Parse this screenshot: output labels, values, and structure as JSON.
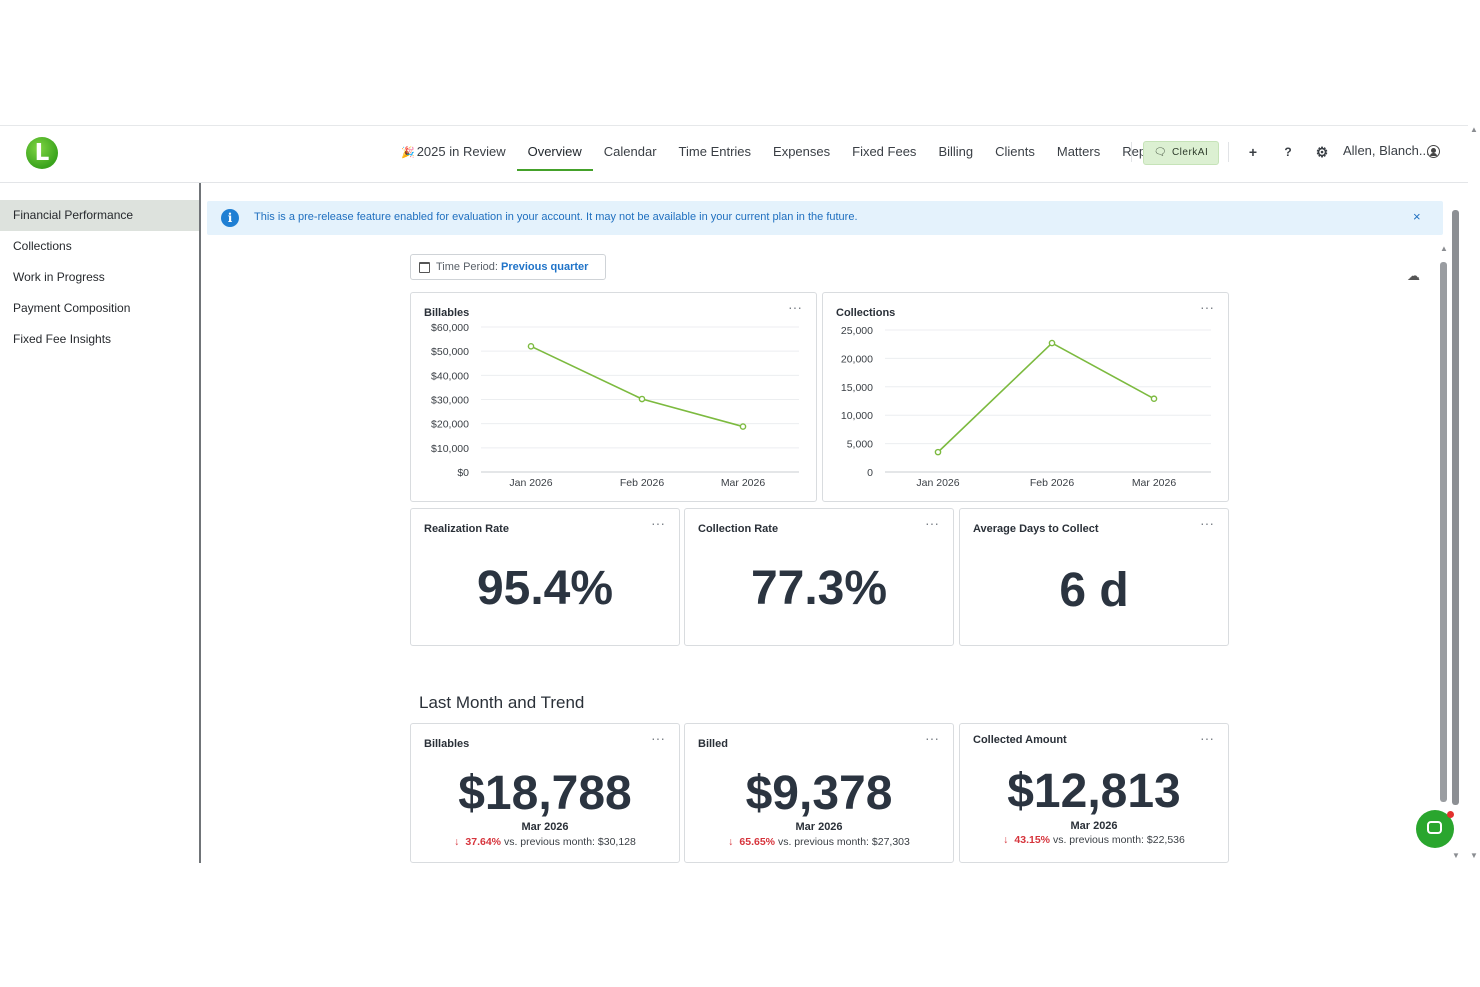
{
  "nav": {
    "items": [
      {
        "label": "2025 in Review",
        "icon": "party-popper-icon"
      },
      {
        "label": "Overview",
        "active": true
      },
      {
        "label": "Calendar"
      },
      {
        "label": "Time Entries"
      },
      {
        "label": "Expenses"
      },
      {
        "label": "Fixed Fees"
      },
      {
        "label": "Billing"
      },
      {
        "label": "Clients"
      },
      {
        "label": "Matters"
      },
      {
        "label": "Reports"
      }
    ],
    "clerk_label": "ClerkAI",
    "user_name": "Allen, Blanch...",
    "logo_letter": "L"
  },
  "sidebar": {
    "items": [
      {
        "label": "Financial Performance",
        "active": true
      },
      {
        "label": "Collections"
      },
      {
        "label": "Work in Progress"
      },
      {
        "label": "Payment Composition"
      },
      {
        "label": "Fixed Fee Insights"
      }
    ]
  },
  "banner": {
    "message": "This is a pre-release feature enabled for evaluation in your account. It may not be available in your current plan in the future.",
    "close": "×"
  },
  "filter": {
    "label": "Time Period:",
    "value": "Previous quarter"
  },
  "menu_glyph": "···",
  "chart_data": [
    {
      "type": "line",
      "title": "Billables",
      "categories": [
        "Jan 2026",
        "Feb 2026",
        "Mar 2026"
      ],
      "values": [
        52000,
        30200,
        18800
      ],
      "yticks": [
        "$0",
        "$10,000",
        "$20,000",
        "$30,000",
        "$40,000",
        "$50,000",
        "$60,000"
      ],
      "ylim": [
        0,
        60000
      ],
      "color": "#7cba3f",
      "grid": true
    },
    {
      "type": "line",
      "title": "Collections",
      "categories": [
        "Jan 2026",
        "Feb 2026",
        "Mar 2026"
      ],
      "values": [
        3500,
        22700,
        12900
      ],
      "yticks": [
        "0",
        "5,000",
        "10,000",
        "15,000",
        "20,000",
        "25,000"
      ],
      "ylim": [
        0,
        25000
      ],
      "color": "#7cba3f",
      "grid": true
    }
  ],
  "kpis": {
    "realization": {
      "title": "Realization Rate",
      "value": "95.4%"
    },
    "collection": {
      "title": "Collection Rate",
      "value": "77.3%"
    },
    "days": {
      "title": "Average Days to Collect",
      "value": "6 d"
    }
  },
  "trend": {
    "section_title": "Last Month and Trend",
    "billables": {
      "title": "Billables",
      "value": "$18,788",
      "month": "Mar 2026",
      "change": "37.64%",
      "compare": "vs. previous month: $30,128"
    },
    "billed": {
      "title": "Billed",
      "value": "$9,378",
      "month": "Mar 2026",
      "change": "65.65%",
      "compare": "vs. previous month: $27,303"
    },
    "collected": {
      "title": "Collected Amount",
      "value": "$12,813",
      "month": "Mar 2026",
      "change": "43.15%",
      "compare": "vs. previous month: $22,536"
    }
  }
}
